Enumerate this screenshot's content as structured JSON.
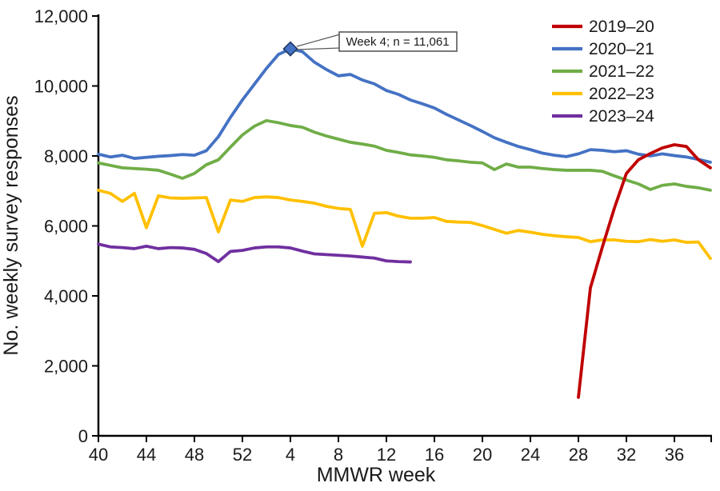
{
  "chart_data": {
    "type": "line",
    "title": "",
    "ylabel": "No. weekly survey responses",
    "xlabel": "MMWR week",
    "ylim": [
      0,
      12000
    ],
    "grid": false,
    "legend_position": "top-right",
    "y_ticks": [
      {
        "value": 0,
        "label": "0"
      },
      {
        "value": 2000,
        "label": "2,000"
      },
      {
        "value": 4000,
        "label": "4,000"
      },
      {
        "value": 6000,
        "label": "6,000"
      },
      {
        "value": 8000,
        "label": "8,000"
      },
      {
        "value": 10000,
        "label": "10,000"
      },
      {
        "value": 12000,
        "label": "12,000"
      }
    ],
    "x_categories": [
      "40",
      "41",
      "42",
      "43",
      "44",
      "45",
      "46",
      "47",
      "48",
      "49",
      "50",
      "51",
      "52",
      "1",
      "2",
      "3",
      "4",
      "5",
      "6",
      "7",
      "8",
      "9",
      "10",
      "11",
      "12",
      "13",
      "14",
      "15",
      "16",
      "17",
      "18",
      "19",
      "20",
      "21",
      "22",
      "23",
      "24",
      "25",
      "26",
      "27",
      "28",
      "29",
      "30",
      "31",
      "32",
      "33",
      "34",
      "35",
      "36",
      "37",
      "38",
      "39"
    ],
    "x_ticks": [
      {
        "index": 0,
        "label": "40"
      },
      {
        "index": 4,
        "label": "44"
      },
      {
        "index": 8,
        "label": "48"
      },
      {
        "index": 12,
        "label": "52"
      },
      {
        "index": 16,
        "label": "4"
      },
      {
        "index": 20,
        "label": "8"
      },
      {
        "index": 24,
        "label": "12"
      },
      {
        "index": 28,
        "label": "16"
      },
      {
        "index": 32,
        "label": "20"
      },
      {
        "index": 36,
        "label": "24"
      },
      {
        "index": 40,
        "label": "28"
      },
      {
        "index": 44,
        "label": "32"
      },
      {
        "index": 48,
        "label": "36"
      }
    ],
    "series": [
      {
        "name": "2019–20",
        "color": "#C00000",
        "start_index": 40,
        "values": [
          1100,
          4230,
          5400,
          6510,
          7500,
          7890,
          8070,
          8230,
          8320,
          8270,
          7890,
          7660
        ]
      },
      {
        "name": "2020–21",
        "color": "#4472C4",
        "start_index": 0,
        "values": [
          8050,
          7970,
          8020,
          7930,
          7960,
          7990,
          8010,
          8040,
          8020,
          8150,
          8550,
          9100,
          9600,
          10050,
          10500,
          10900,
          11061,
          10980,
          10680,
          10470,
          10290,
          10330,
          10170,
          10060,
          9870,
          9760,
          9600,
          9490,
          9370,
          9190,
          9030,
          8870,
          8700,
          8520,
          8390,
          8270,
          8180,
          8080,
          8020,
          7980,
          8060,
          8180,
          8160,
          8120,
          8150,
          8050,
          8000,
          8060,
          8010,
          7970,
          7900,
          7820
        ]
      },
      {
        "name": "2021–22",
        "color": "#70AD47",
        "start_index": 0,
        "values": [
          7800,
          7730,
          7660,
          7640,
          7620,
          7590,
          7480,
          7360,
          7500,
          7750,
          7890,
          8250,
          8600,
          8850,
          9010,
          8950,
          8870,
          8820,
          8680,
          8570,
          8480,
          8390,
          8340,
          8280,
          8160,
          8100,
          8030,
          8000,
          7960,
          7890,
          7860,
          7820,
          7800,
          7610,
          7770,
          7680,
          7680,
          7640,
          7610,
          7590,
          7590,
          7590,
          7560,
          7430,
          7310,
          7200,
          7040,
          7160,
          7200,
          7130,
          7090,
          7020
        ]
      },
      {
        "name": "2022–23",
        "color": "#FFC000",
        "start_index": 0,
        "values": [
          7020,
          6930,
          6700,
          6930,
          5950,
          6860,
          6800,
          6790,
          6800,
          6810,
          5830,
          6740,
          6700,
          6810,
          6830,
          6810,
          6740,
          6700,
          6650,
          6560,
          6500,
          6470,
          5420,
          6360,
          6380,
          6280,
          6220,
          6220,
          6240,
          6130,
          6110,
          6100,
          6010,
          5900,
          5790,
          5870,
          5820,
          5760,
          5720,
          5690,
          5670,
          5550,
          5600,
          5600,
          5560,
          5550,
          5610,
          5560,
          5600,
          5530,
          5540,
          5070
        ]
      },
      {
        "name": "2023–24",
        "color": "#7030A0",
        "start_index": 0,
        "values": [
          5480,
          5400,
          5380,
          5350,
          5420,
          5350,
          5380,
          5370,
          5330,
          5210,
          4980,
          5270,
          5300,
          5370,
          5400,
          5400,
          5370,
          5280,
          5200,
          5180,
          5160,
          5140,
          5110,
          5080,
          5000,
          4980,
          4970
        ]
      }
    ],
    "annotation": {
      "text": "Week 4; n = 11,061",
      "series": "2020–21",
      "week_label": "4",
      "week_index": 16,
      "value": 11061,
      "marker": "diamond",
      "marker_fill": "#4472C4",
      "marker_border": "#203864"
    }
  }
}
